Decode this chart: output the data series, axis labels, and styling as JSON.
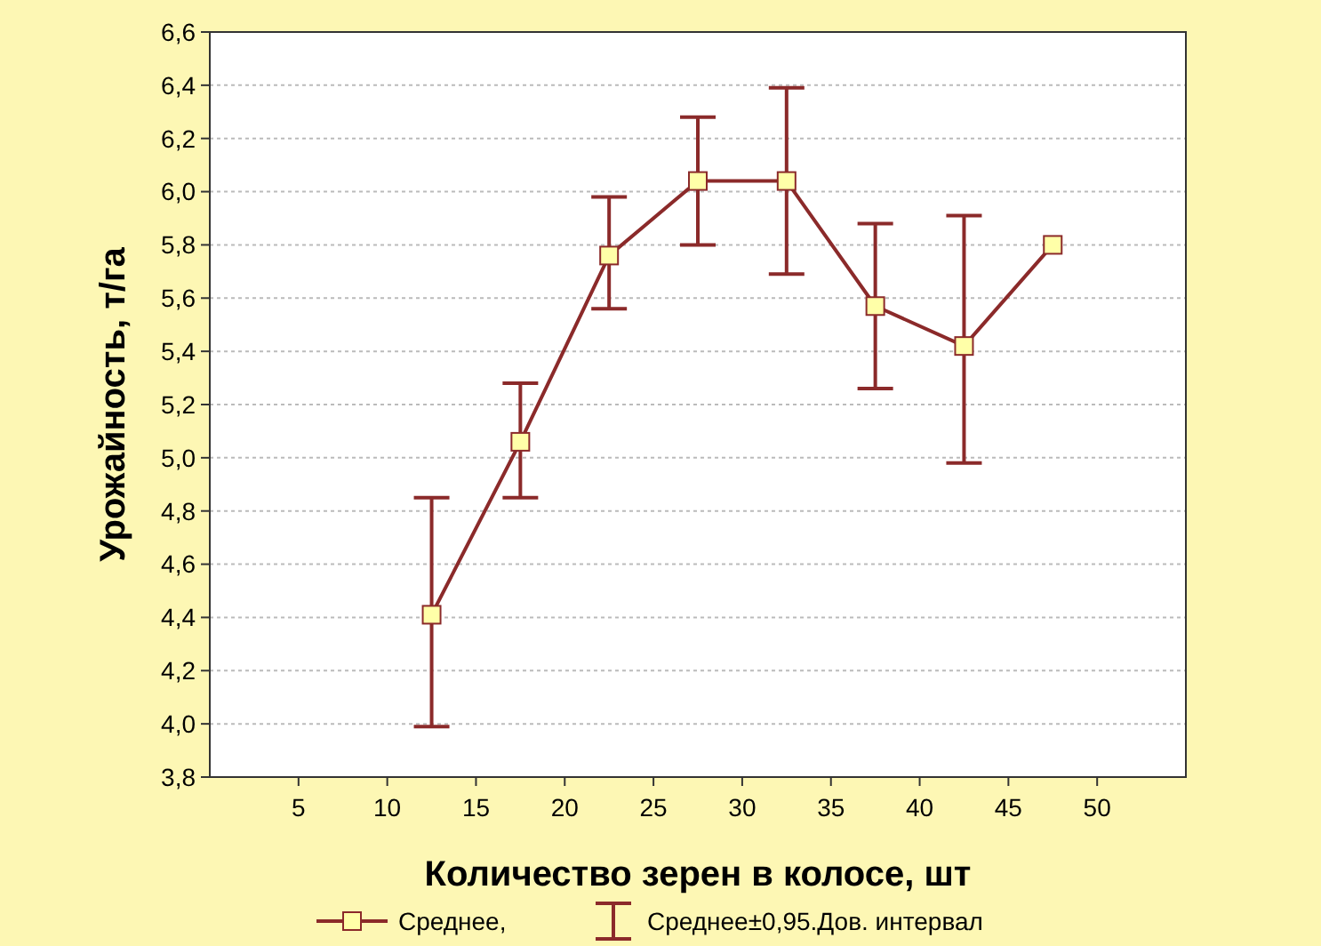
{
  "chart_data": {
    "type": "line",
    "xlabel": "Количество зерен в колосе, шт",
    "ylabel": "Урожайность, т/га",
    "x": [
      12.5,
      17.5,
      22.5,
      27.5,
      32.5,
      37.5,
      42.5,
      47.5
    ],
    "series": [
      {
        "name": "Среднее,",
        "color": "#8b2a2a",
        "values": [
          4.41,
          5.06,
          5.76,
          6.04,
          6.04,
          5.57,
          5.42,
          5.8
        ],
        "errors": [
          [
            3.99,
            4.85
          ],
          [
            4.85,
            5.28
          ],
          [
            5.56,
            5.98
          ],
          [
            5.8,
            6.28
          ],
          [
            5.69,
            6.39
          ],
          [
            5.26,
            5.88
          ],
          [
            4.98,
            5.91
          ],
          null
        ]
      }
    ],
    "annotations": [
      "Среднее±0,95.Дов. интервал"
    ],
    "xlim": [
      0,
      55
    ],
    "xticks": [
      5,
      10,
      15,
      20,
      25,
      30,
      35,
      40,
      45,
      50
    ],
    "ylim": [
      3.8,
      6.6
    ],
    "yticks": [
      {
        "value": 3.8,
        "label": "3,8"
      },
      {
        "value": 4,
        "label": "4,0"
      },
      {
        "value": 4.2,
        "label": "4,2"
      },
      {
        "value": 4.4,
        "label": "4,4"
      },
      {
        "value": 4.6,
        "label": "4,6"
      },
      {
        "value": 4.8,
        "label": "4,8"
      },
      {
        "value": 5,
        "label": "5,0"
      },
      {
        "value": 5.2,
        "label": "5,2"
      },
      {
        "value": 5.4,
        "label": "5,4"
      },
      {
        "value": 5.6,
        "label": "5,6"
      },
      {
        "value": 5.8,
        "label": "5,8"
      },
      {
        "value": 6,
        "label": "6,0"
      },
      {
        "value": 6.2,
        "label": "6,2"
      },
      {
        "value": 6.4,
        "label": "6,4"
      },
      {
        "value": 6.6,
        "label": "6,6"
      }
    ],
    "grid": "y",
    "legend": "bottom",
    "marker": "square",
    "line_style": "solid"
  }
}
